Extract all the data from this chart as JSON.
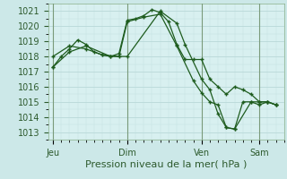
{
  "bg_color": "#cce8e8",
  "plot_bg_color": "#d8f0f0",
  "grid_color": "#b8d8d8",
  "line_color": "#1e5c1e",
  "vline_color": "#7a9a7a",
  "xlabel": "Pression niveau de la mer( hPa )",
  "yticks": [
    1013,
    1014,
    1015,
    1016,
    1017,
    1018,
    1019,
    1020,
    1021
  ],
  "ylim": [
    1012.5,
    1021.5
  ],
  "xtick_labels": [
    "Jeu",
    "Dim",
    "Ven",
    "Sam"
  ],
  "xtick_positions": [
    0,
    9,
    18,
    25
  ],
  "xlim": [
    -0.5,
    28
  ],
  "series1_x": [
    0,
    1,
    2,
    3,
    4,
    5,
    6,
    7,
    8,
    9,
    10,
    11,
    12,
    13,
    14,
    15,
    16,
    17,
    18,
    19,
    20,
    21,
    22,
    23,
    24,
    25,
    26,
    27
  ],
  "series1_y": [
    1017.3,
    1018.0,
    1018.5,
    1019.1,
    1018.8,
    1018.3,
    1018.1,
    1018.0,
    1018.2,
    1020.4,
    1020.5,
    1020.7,
    1021.1,
    1020.9,
    1020.3,
    1018.8,
    1017.8,
    1017.8,
    1017.8,
    1016.5,
    1016.0,
    1015.5,
    1016.0,
    1015.8,
    1015.5,
    1015.0,
    1015.0,
    1014.8
  ],
  "series2_x": [
    0,
    2,
    4,
    6,
    8,
    9,
    11,
    13,
    15,
    17,
    18,
    19,
    20,
    21,
    22,
    23,
    24,
    25,
    26,
    27
  ],
  "series2_y": [
    1018.0,
    1018.7,
    1018.5,
    1018.1,
    1018.0,
    1020.3,
    1020.6,
    1020.8,
    1018.7,
    1016.4,
    1015.6,
    1015.0,
    1014.8,
    1013.3,
    1013.2,
    1015.0,
    1015.0,
    1014.8,
    1015.0,
    1014.8
  ],
  "series3_x": [
    0,
    2,
    4,
    7,
    9,
    13,
    15,
    16,
    18,
    19,
    20,
    21,
    22,
    24,
    25,
    26,
    27
  ],
  "series3_y": [
    1017.3,
    1018.3,
    1018.7,
    1018.0,
    1018.0,
    1021.0,
    1020.2,
    1018.8,
    1016.5,
    1015.8,
    1014.2,
    1013.3,
    1013.2,
    1015.0,
    1015.0,
    1015.0,
    1014.8
  ],
  "vline_positions": [
    0,
    9,
    18,
    25
  ],
  "fontsize": 7,
  "xlabel_fontsize": 8
}
